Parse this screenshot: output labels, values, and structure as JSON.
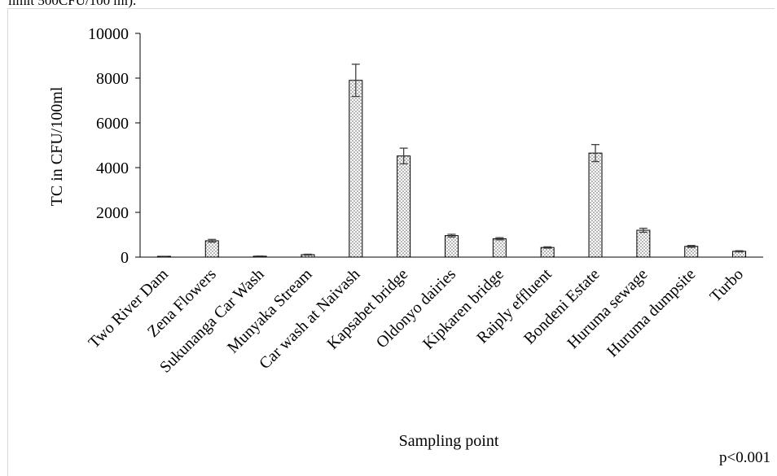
{
  "caption_fragment": "limit 500CFU/100 ml).",
  "chart_data": {
    "type": "bar",
    "ylabel": "TC in CFU/100ml",
    "xlabel": "Sampling point",
    "ylim": [
      0,
      10000
    ],
    "yticks": [
      0,
      2000,
      4000,
      6000,
      8000,
      10000
    ],
    "categories": [
      "Two River Dam",
      "Zena Flowers",
      "Sukunanga Car Wash",
      "Munyaka Stream",
      "Car wash at Naivash",
      "Kapsabet bridge",
      "Oldonyo dairies",
      "Kipkaren bridge",
      "Raiply effluent",
      "Bondeni Estate",
      "Huruma sewage",
      "Huruma dumpsite",
      "Turbo"
    ],
    "values": [
      10,
      730,
      40,
      110,
      7900,
      4520,
      960,
      820,
      430,
      4650,
      1200,
      480,
      260
    ],
    "errors": [
      5,
      60,
      10,
      20,
      720,
      350,
      60,
      50,
      30,
      380,
      90,
      40,
      25
    ],
    "grid": false,
    "bar_pattern": "dotted",
    "annotation": "p<0.001"
  }
}
